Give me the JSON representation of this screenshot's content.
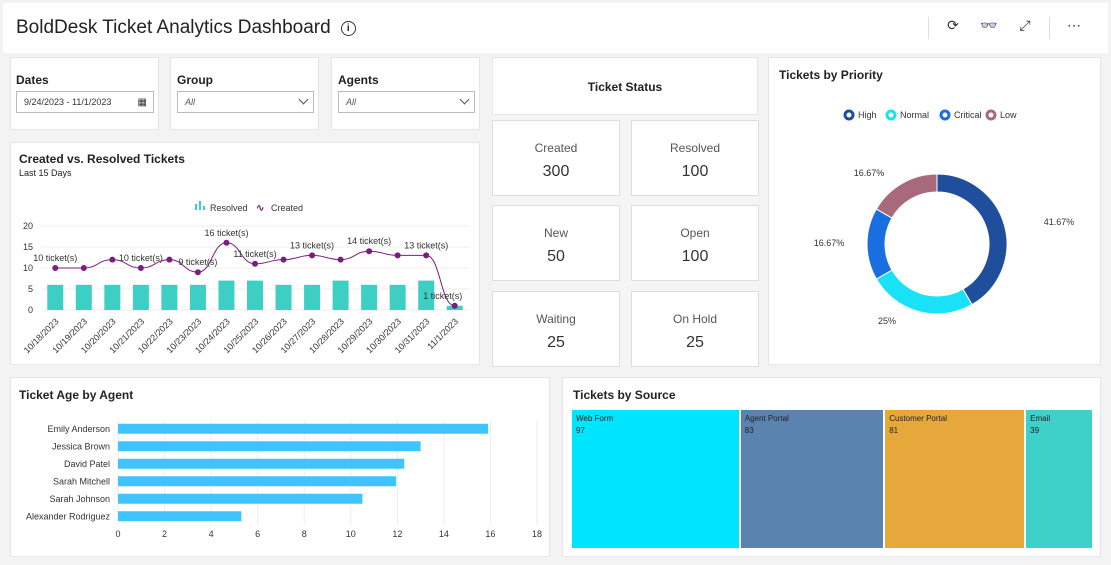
{
  "header": {
    "title": "BoldDesk Ticket Analytics Dashboard",
    "info_icon": "info-icon",
    "actions": [
      "refresh-icon",
      "view-icon",
      "expand-icon",
      "more-icon"
    ]
  },
  "filters": {
    "dates": {
      "label": "Dates",
      "value": "9/24/2023 - 11/1/2023"
    },
    "group": {
      "label": "Group",
      "value": "All"
    },
    "agents": {
      "label": "Agents",
      "value": "All"
    }
  },
  "ticket_status": {
    "title": "Ticket Status",
    "cards": [
      {
        "label": "Created",
        "value": "300"
      },
      {
        "label": "Resolved",
        "value": "100"
      },
      {
        "label": "New",
        "value": "50"
      },
      {
        "label": "Open",
        "value": "100"
      },
      {
        "label": "Waiting",
        "value": "25"
      },
      {
        "label": "On Hold",
        "value": "25"
      }
    ]
  },
  "chart_data": [
    {
      "type": "bar+line",
      "title": "Created vs. Resolved Tickets",
      "subtitle": "Last 15 Days",
      "legend_position": "top",
      "ylim": [
        0,
        20
      ],
      "yticks": [
        "0",
        "5",
        "10",
        "15",
        "20"
      ],
      "categories": [
        "10/18/2023",
        "10/19/2023",
        "10/20/2023",
        "10/21/2023",
        "10/22/2023",
        "10/23/2023",
        "10/24/2023",
        "10/25/2023",
        "10/26/2023",
        "10/27/2023",
        "10/28/2023",
        "10/29/2023",
        "10/30/2023",
        "10/31/2023",
        "11/1/2023"
      ],
      "series": [
        {
          "name": "Resolved",
          "type": "bar",
          "color": "#3ecfc4",
          "values": [
            6,
            6,
            6,
            6,
            6,
            6,
            7,
            7,
            6,
            6,
            7,
            6,
            6,
            7,
            1
          ]
        },
        {
          "name": "Created",
          "type": "line",
          "color": "#7b1c7e",
          "values": [
            10,
            10,
            12,
            10,
            12,
            9,
            16,
            11,
            12,
            13,
            12,
            14,
            13,
            13,
            1
          ]
        }
      ],
      "data_labels": [
        {
          "index": 0,
          "text": "10 ticket(s)"
        },
        {
          "index": 3,
          "text": "10 ticket(s)"
        },
        {
          "index": 5,
          "text": "9 ticket(s)"
        },
        {
          "index": 6,
          "text": "16 ticket(s)"
        },
        {
          "index": 7,
          "text": "11 ticket(s)"
        },
        {
          "index": 9,
          "text": "13 ticket(s)"
        },
        {
          "index": 11,
          "text": "14 ticket(s)"
        },
        {
          "index": 13,
          "text": "13 ticket(s)"
        },
        {
          "index": 14,
          "text": "1 ticket(s)"
        }
      ]
    },
    {
      "type": "pie",
      "title": "Tickets by Priority",
      "donut": true,
      "legend_position": "top",
      "slices": [
        {
          "name": "High",
          "value": 41.67,
          "label": "41.67%",
          "color": "#1f4e9c"
        },
        {
          "name": "Normal",
          "value": 25,
          "label": "25%",
          "color": "#19e2f7"
        },
        {
          "name": "Critical",
          "value": 16.67,
          "label": "16.67%",
          "color": "#1a6fe0"
        },
        {
          "name": "Low",
          "value": 16.67,
          "label": "16.67%",
          "color": "#a86a7a"
        }
      ]
    },
    {
      "type": "bar",
      "orientation": "horizontal",
      "title": "Ticket Age by Agent",
      "xlim": [
        0,
        18
      ],
      "xticks": [
        "0",
        "2",
        "4",
        "6",
        "8",
        "10",
        "12",
        "14",
        "16",
        "18"
      ],
      "color": "#40c4ff",
      "categories": [
        "Emily Anderson",
        "Jessica Brown",
        "David Patel",
        "Sarah Mitchell",
        "Sarah Johnson",
        "Alexander Rodriguez"
      ],
      "values": [
        15.9,
        13,
        12.3,
        11.95,
        10.5,
        5.3
      ]
    },
    {
      "type": "treemap",
      "title": "Tickets by Source",
      "items": [
        {
          "name": "Web Form",
          "value": "97",
          "color": "#00e5ff"
        },
        {
          "name": "Agent Portal",
          "value": "83",
          "color": "#5a83b0"
        },
        {
          "name": "Customer Portal",
          "value": "81",
          "color": "#e6a83b"
        },
        {
          "name": "Email",
          "value": "39",
          "color": "#3dd1c9"
        }
      ]
    }
  ]
}
